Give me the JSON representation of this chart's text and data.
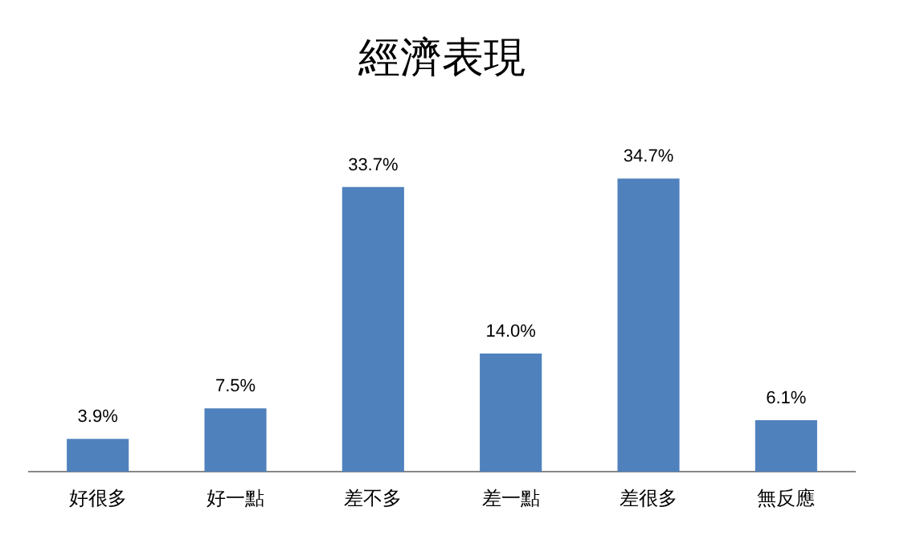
{
  "chart_data": {
    "type": "bar",
    "title": "經濟表現",
    "categories": [
      "好很多",
      "好一點",
      "差不多",
      "差一點",
      "差很多",
      "無反應"
    ],
    "values": [
      3.9,
      7.5,
      33.7,
      14.0,
      34.7,
      6.1
    ],
    "value_labels": [
      "3.9%",
      "7.5%",
      "33.7%",
      "14.0%",
      "34.7%",
      "6.1%"
    ],
    "color": "#4f81bd",
    "legend": false,
    "grid": false
  }
}
